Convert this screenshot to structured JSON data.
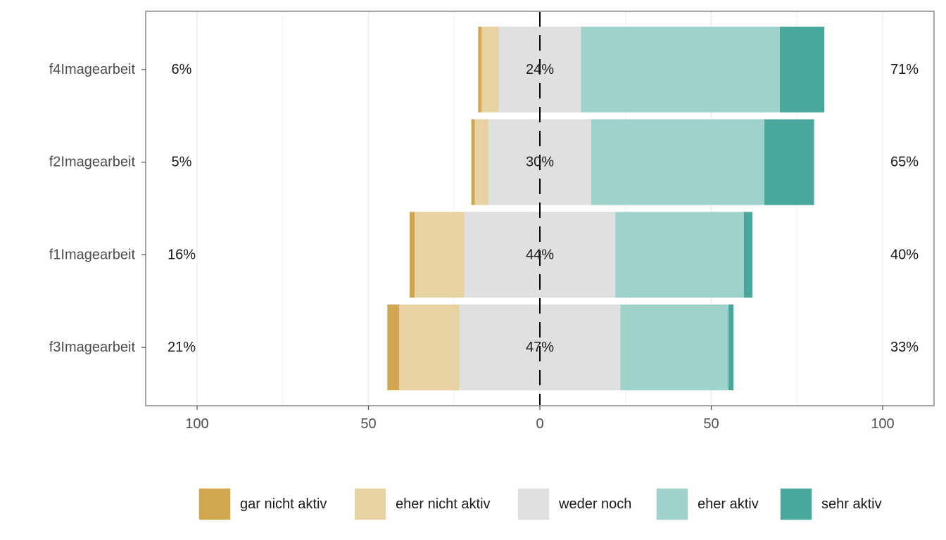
{
  "chart_data": {
    "type": "bar",
    "orientation": "horizontal",
    "stacked": "diverging",
    "categories": [
      "f4Imagearbeit",
      "f2Imagearbeit",
      "f1Imagearbeit",
      "f3Imagearbeit"
    ],
    "series": [
      {
        "name": "gar nicht aktiv",
        "color": "#D0A650",
        "values": [
          1,
          1,
          1.5,
          3.5
        ]
      },
      {
        "name": "eher nicht aktiv",
        "color": "#E7D2A3",
        "values": [
          5,
          4,
          14.5,
          17.5
        ]
      },
      {
        "name": "weder noch",
        "color": "#E0E0E0",
        "values": [
          24,
          30,
          44,
          47
        ]
      },
      {
        "name": "eher aktiv",
        "color": "#A0D2CC",
        "values": [
          58,
          50.5,
          37.5,
          31.5
        ]
      },
      {
        "name": "sehr aktiv",
        "color": "#4AA79C",
        "values": [
          13,
          14.5,
          2.5,
          1.5
        ]
      }
    ],
    "left_labels": [
      "6%",
      "5%",
      "16%",
      "21%"
    ],
    "center_labels": [
      "24%",
      "30%",
      "44%",
      "47%"
    ],
    "right_labels": [
      "71%",
      "65%",
      "40%",
      "33%"
    ],
    "xlim": [
      -100,
      100
    ],
    "xticks": [
      -100,
      -50,
      0,
      50,
      100
    ],
    "xtick_labels": [
      "100",
      "50",
      "0",
      "50",
      "100"
    ],
    "legend_position": "bottom",
    "grid": true,
    "title": "",
    "xlabel": "",
    "ylabel": ""
  }
}
